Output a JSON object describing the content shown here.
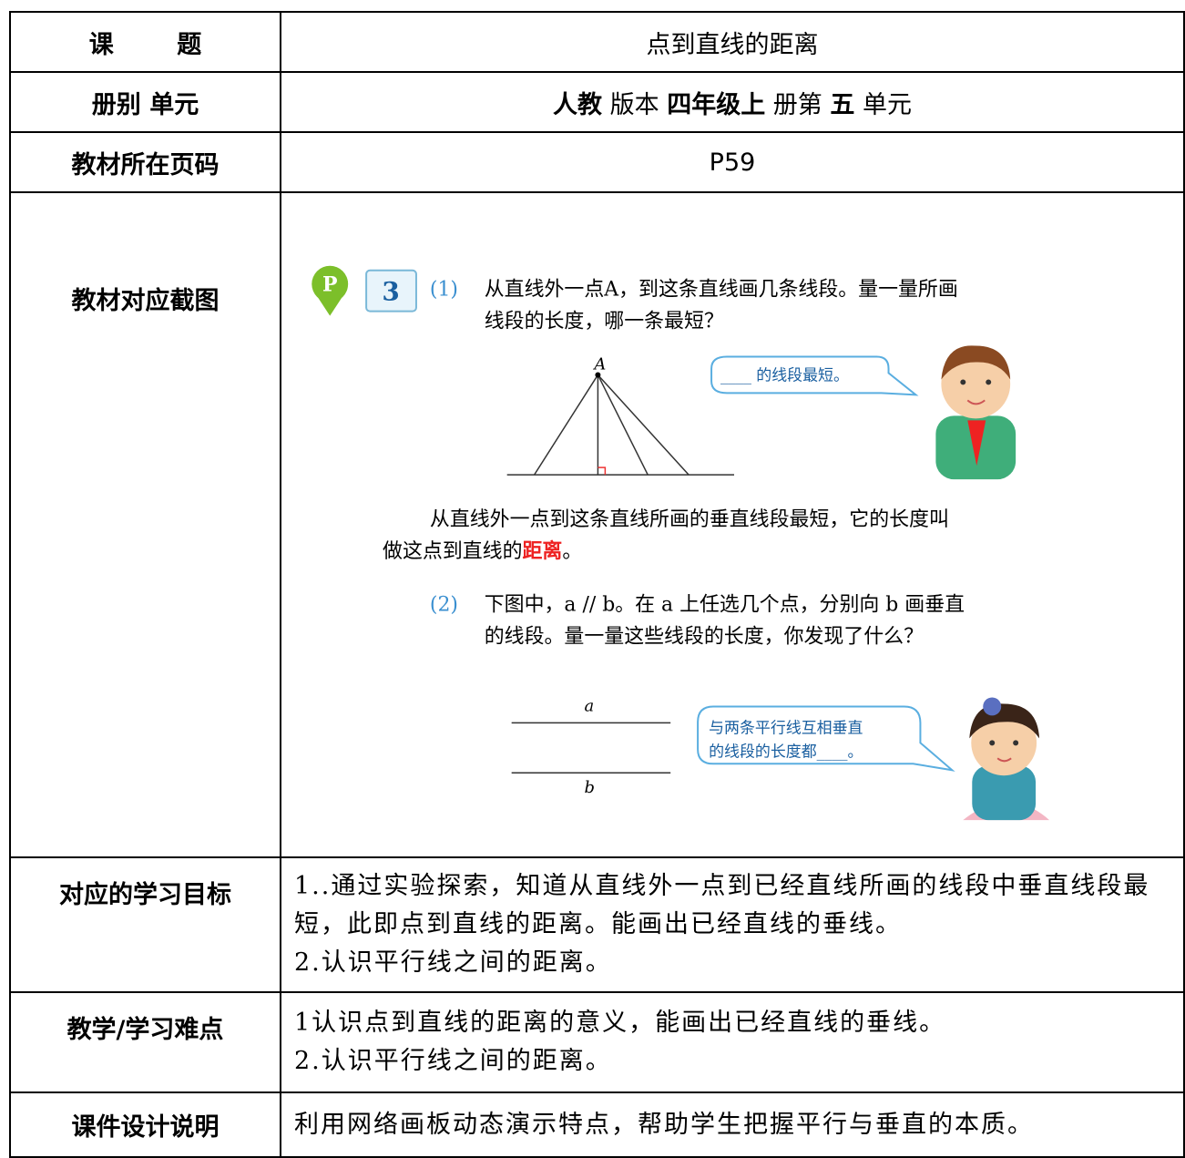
{
  "table": {
    "rows": [
      {
        "label": "课 题",
        "content": "点到直线的距离"
      },
      {
        "label": "册别 单元",
        "content": [
          "人教",
          " 版本 ",
          "四年级上",
          " 册第 ",
          "五",
          " 单元"
        ]
      },
      {
        "label": "教材所在页码",
        "content": "P59"
      },
      {
        "label": "教材对应截图",
        "content": {
          "example_number": "3",
          "part_1": "(1)",
          "question_1": [
            "从直线外一点A，到这条直线画几条线段。量一量所画",
            "线段的长度，哪一条最短？"
          ],
          "point_label": "A",
          "bubble_1": "____ 的线段最短。",
          "definition": [
            "从直线外一点到这条直线所画的垂直线段最短，它的长度叫",
            "做这点到直线的",
            "距离",
            "。"
          ],
          "part_2": "(2)",
          "question_2": [
            "下图中，a // b。在 a 上任选几个点，分别向 b 画垂直",
            "的线段。量一量这些线段的长度，你发现了什么？"
          ],
          "line_a": "a",
          "line_b": "b",
          "bubble_2": [
            "与两条平行线互相垂直",
            "的线段的长度都____。"
          ]
        }
      },
      {
        "label": "对应的学习目标",
        "content": [
          "1..通过实验探索，知道从直线外一点到已经直线所画的线段中垂直线段最短，此即点到直线的距离。能画出已经直线的垂线。",
          "2.认识平行线之间的距离。"
        ]
      },
      {
        "label": "教学/学习难点",
        "content": [
          "1认识点到直线的距离的意义，能画出已经直线的垂线。",
          "2.认识平行线之间的距离。"
        ]
      },
      {
        "label": "课件设计说明",
        "content": "利用网络画板动态演示特点，帮助学生把握平行与垂直的本质。"
      }
    ]
  }
}
